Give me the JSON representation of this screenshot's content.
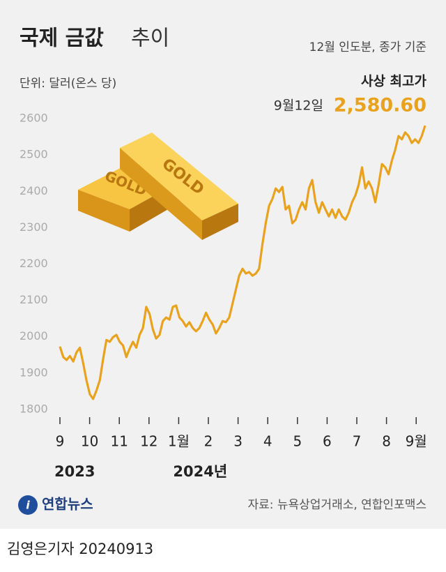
{
  "chart_data": {
    "type": "line",
    "title": "국제 금값",
    "title_suffix": "추이",
    "subtitle": "12월 인도분, 종가 기준",
    "unit_label": "단위: 달러(온스 당)",
    "annotation": {
      "title": "사상 최고가",
      "date": "9월12일",
      "value": 2580.6,
      "value_label": "2,580.60"
    },
    "year_labels": [
      {
        "value": 0,
        "label": "2023"
      },
      {
        "value": 4,
        "label": "2024년"
      }
    ],
    "series": [
      {
        "name": "금값",
        "color": "#e8a21e",
        "values": [
          1973,
          1944,
          1936,
          1947,
          1932,
          1957,
          1970,
          1928,
          1880,
          1842,
          1829,
          1852,
          1880,
          1938,
          1991,
          1986,
          1999,
          2005,
          1986,
          1976,
          1944,
          1967,
          1986,
          1970,
          2005,
          2024,
          2082,
          2063,
          2020,
          1995,
          2005,
          2043,
          2053,
          2047,
          2082,
          2086,
          2053,
          2043,
          2028,
          2040,
          2024,
          2015,
          2024,
          2043,
          2066,
          2047,
          2034,
          2009,
          2024,
          2043,
          2040,
          2053,
          2091,
          2130,
          2168,
          2187,
          2174,
          2178,
          2168,
          2174,
          2187,
          2255,
          2312,
          2360,
          2379,
          2408,
          2398,
          2412,
          2350,
          2360,
          2312,
          2322,
          2350,
          2370,
          2350,
          2408,
          2431,
          2370,
          2341,
          2370,
          2350,
          2331,
          2350,
          2327,
          2350,
          2331,
          2322,
          2341,
          2370,
          2389,
          2418,
          2466,
          2408,
          2427,
          2408,
          2370,
          2418,
          2475,
          2466,
          2447,
          2485,
          2514,
          2552,
          2543,
          2562,
          2552,
          2533,
          2543,
          2533,
          2552,
          2580.6
        ]
      }
    ],
    "xlim": [
      0,
      12.3
    ],
    "xticks": [
      {
        "value": 0,
        "label": "9"
      },
      {
        "value": 1,
        "label": "10"
      },
      {
        "value": 2,
        "label": "11"
      },
      {
        "value": 3,
        "label": "12"
      },
      {
        "value": 4,
        "label": "1월"
      },
      {
        "value": 5,
        "label": "2"
      },
      {
        "value": 6,
        "label": "3"
      },
      {
        "value": 7,
        "label": "4"
      },
      {
        "value": 8,
        "label": "5"
      },
      {
        "value": 9,
        "label": "6"
      },
      {
        "value": 10,
        "label": "7"
      },
      {
        "value": 11,
        "label": "8"
      },
      {
        "value": 12,
        "label": "9월"
      }
    ],
    "ylim": [
      1780,
      2620
    ],
    "yticks": [
      1800,
      1900,
      2000,
      2100,
      2200,
      2300,
      2400,
      2500,
      2600
    ],
    "grid": false,
    "source": "자료: 뉴욕상업거래소, 연합인포맥스",
    "logo": "연합뉴스",
    "byline": "김영은기자 20240913"
  }
}
